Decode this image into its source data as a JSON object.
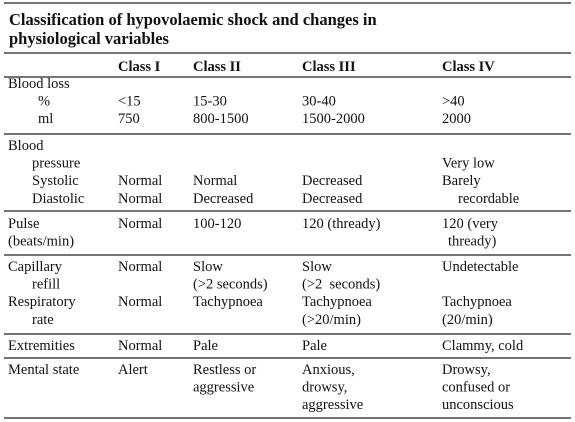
{
  "header": {
    "title": "Classification of hypovolaemic shock and changes in physiological variables"
  },
  "table": {
    "columns": [
      "Class I",
      "Class II",
      "Class III",
      "Class IV"
    ],
    "groups": [
      {
        "label": [
          "Blood loss",
          "%",
          "ml"
        ],
        "cells": [
          [
            null,
            "<15",
            "750"
          ],
          [
            null,
            "15-30",
            "800-1500"
          ],
          [
            null,
            "30-40",
            "1500-2000"
          ],
          [
            null,
            ">40",
            "2000"
          ]
        ]
      },
      {
        "label": [
          "Blood",
          "pressure",
          "Systolic",
          "Diastolic"
        ],
        "cells": [
          [
            null,
            null,
            "Normal",
            "Normal"
          ],
          [
            null,
            null,
            "Normal",
            "Decreased"
          ],
          [
            null,
            null,
            "Decreased",
            "Decreased"
          ],
          [
            null,
            "Very low",
            "Barely",
            "recordable"
          ]
        ]
      },
      {
        "label": [
          "Pulse",
          "(beats/min)"
        ],
        "cells": [
          [
            "Normal"
          ],
          [
            "100-120"
          ],
          [
            "120 (thready)"
          ],
          [
            "120 (very",
            "thready)"
          ]
        ]
      },
      {
        "label": [
          "Capillary",
          "refill",
          "Respiratory",
          "rate"
        ],
        "cells": [
          [
            "Normal",
            null,
            "Normal"
          ],
          [
            "Slow",
            "(>2 seconds)",
            "Tachypnoea"
          ],
          [
            "Slow",
            "(>2  seconds)",
            "Tachypnoea",
            "(>20/min)"
          ],
          [
            "Undetectable",
            null,
            "Tachypnoea",
            "(20/min)"
          ]
        ]
      },
      {
        "label": [
          "Extremities"
        ],
        "cells": [
          [
            "Normal"
          ],
          [
            "Pale"
          ],
          [
            "Pale"
          ],
          [
            "Clammy, cold"
          ]
        ]
      },
      {
        "label": [
          "Mental state"
        ],
        "cells": [
          [
            "Alert"
          ],
          [
            "Restless or",
            "aggressive"
          ],
          [
            "Anxious,",
            "drowsy,",
            "aggressive"
          ],
          [
            "Drowsy,",
            "confused or",
            "unconscious"
          ]
        ]
      }
    ]
  }
}
